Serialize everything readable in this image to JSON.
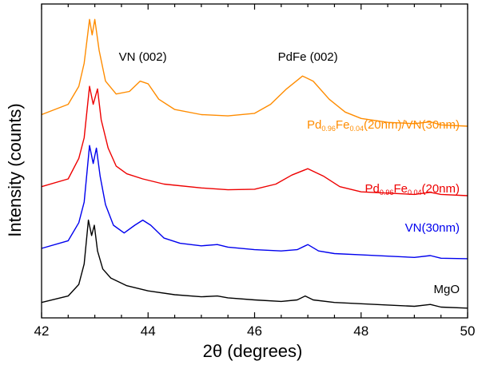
{
  "chart_data": {
    "type": "line",
    "title": "",
    "xlabel": "2θ (degrees)",
    "ylabel": "Intensity (counts)",
    "xlim": [
      42,
      50
    ],
    "xticks": [
      "42",
      "44",
      "46",
      "48",
      "50"
    ],
    "yticks_shown": false,
    "y_units": "arbitrary (offset, no y tick labels)",
    "grid": false,
    "legend": "none (inline series labels on right)",
    "annotations": [
      {
        "text": "VN (002)",
        "x": 43.9
      },
      {
        "text": "PdFe (002)",
        "x": 47.0
      }
    ],
    "series": [
      {
        "name": "MgO",
        "label_parts": [
          {
            "t": "MgO"
          }
        ],
        "color": "#000000",
        "points": [
          [
            42.0,
            0.6
          ],
          [
            42.5,
            0.85
          ],
          [
            42.7,
            1.3
          ],
          [
            42.8,
            2.1
          ],
          [
            42.88,
            3.8
          ],
          [
            42.94,
            3.2
          ],
          [
            42.99,
            3.6
          ],
          [
            43.05,
            2.6
          ],
          [
            43.15,
            1.9
          ],
          [
            43.3,
            1.55
          ],
          [
            43.6,
            1.25
          ],
          [
            44.0,
            1.05
          ],
          [
            44.5,
            0.9
          ],
          [
            45.0,
            0.82
          ],
          [
            45.3,
            0.85
          ],
          [
            45.5,
            0.78
          ],
          [
            46.0,
            0.7
          ],
          [
            46.5,
            0.64
          ],
          [
            46.8,
            0.7
          ],
          [
            46.95,
            0.85
          ],
          [
            47.1,
            0.7
          ],
          [
            47.5,
            0.6
          ],
          [
            48.0,
            0.55
          ],
          [
            48.5,
            0.5
          ],
          [
            49.0,
            0.45
          ],
          [
            49.3,
            0.52
          ],
          [
            49.5,
            0.42
          ],
          [
            50.0,
            0.38
          ]
        ]
      },
      {
        "name": "VN(30nm)",
        "label_parts": [
          {
            "t": "VN(30nm)"
          }
        ],
        "color": "#0000ee",
        "points": [
          [
            42.0,
            2.7
          ],
          [
            42.5,
            3.0
          ],
          [
            42.7,
            3.7
          ],
          [
            42.8,
            4.5
          ],
          [
            42.9,
            6.7
          ],
          [
            42.97,
            6.0
          ],
          [
            43.03,
            6.6
          ],
          [
            43.1,
            5.5
          ],
          [
            43.2,
            4.4
          ],
          [
            43.35,
            3.6
          ],
          [
            43.55,
            3.3
          ],
          [
            43.75,
            3.6
          ],
          [
            43.9,
            3.8
          ],
          [
            44.05,
            3.6
          ],
          [
            44.3,
            3.1
          ],
          [
            44.6,
            2.9
          ],
          [
            45.0,
            2.8
          ],
          [
            45.3,
            2.85
          ],
          [
            45.5,
            2.75
          ],
          [
            46.0,
            2.65
          ],
          [
            46.5,
            2.6
          ],
          [
            46.8,
            2.65
          ],
          [
            47.0,
            2.85
          ],
          [
            47.2,
            2.6
          ],
          [
            47.5,
            2.5
          ],
          [
            48.0,
            2.45
          ],
          [
            48.5,
            2.4
          ],
          [
            49.0,
            2.35
          ],
          [
            49.3,
            2.42
          ],
          [
            49.5,
            2.32
          ],
          [
            50.0,
            2.3
          ]
        ]
      },
      {
        "name": "Pd0.96Fe0.04(20nm)",
        "label_parts": [
          {
            "t": "Pd"
          },
          {
            "t": "0.96",
            "sub": true
          },
          {
            "t": "Fe"
          },
          {
            "t": "0.04",
            "sub": true
          },
          {
            "t": "(20nm)"
          }
        ],
        "color": "#ee0000",
        "points": [
          [
            42.0,
            5.1
          ],
          [
            42.5,
            5.4
          ],
          [
            42.7,
            6.2
          ],
          [
            42.8,
            7.0
          ],
          [
            42.9,
            9.0
          ],
          [
            42.97,
            8.3
          ],
          [
            43.05,
            8.9
          ],
          [
            43.12,
            7.7
          ],
          [
            43.25,
            6.6
          ],
          [
            43.4,
            5.9
          ],
          [
            43.6,
            5.6
          ],
          [
            43.9,
            5.4
          ],
          [
            44.3,
            5.2
          ],
          [
            45.0,
            5.05
          ],
          [
            45.5,
            4.98
          ],
          [
            46.0,
            5.0
          ],
          [
            46.4,
            5.2
          ],
          [
            46.7,
            5.55
          ],
          [
            47.0,
            5.8
          ],
          [
            47.3,
            5.5
          ],
          [
            47.6,
            5.1
          ],
          [
            48.0,
            4.9
          ],
          [
            48.5,
            4.85
          ],
          [
            49.0,
            4.8
          ],
          [
            49.3,
            4.88
          ],
          [
            49.5,
            4.8
          ],
          [
            50.0,
            4.75
          ]
        ]
      },
      {
        "name": "Pd0.96Fe0.04(20nm)/VN(30nm)",
        "label_parts": [
          {
            "t": "Pd"
          },
          {
            "t": "0.96",
            "sub": true
          },
          {
            "t": "Fe"
          },
          {
            "t": "0.04",
            "sub": true
          },
          {
            "t": "(20nm)/VN(30nm)"
          }
        ],
        "color": "#ff8c00",
        "points": [
          [
            42.0,
            7.9
          ],
          [
            42.5,
            8.3
          ],
          [
            42.7,
            9.0
          ],
          [
            42.8,
            9.9
          ],
          [
            42.9,
            11.6
          ],
          [
            42.95,
            11.0
          ],
          [
            43.0,
            11.6
          ],
          [
            43.08,
            10.4
          ],
          [
            43.2,
            9.2
          ],
          [
            43.4,
            8.7
          ],
          [
            43.65,
            8.8
          ],
          [
            43.85,
            9.2
          ],
          [
            44.0,
            9.1
          ],
          [
            44.2,
            8.5
          ],
          [
            44.5,
            8.1
          ],
          [
            45.0,
            7.9
          ],
          [
            45.5,
            7.85
          ],
          [
            46.0,
            7.95
          ],
          [
            46.3,
            8.3
          ],
          [
            46.6,
            8.9
          ],
          [
            46.9,
            9.4
          ],
          [
            47.1,
            9.2
          ],
          [
            47.4,
            8.5
          ],
          [
            47.7,
            8.0
          ],
          [
            48.0,
            7.75
          ],
          [
            48.5,
            7.6
          ],
          [
            49.0,
            7.55
          ],
          [
            49.3,
            7.62
          ],
          [
            49.5,
            7.5
          ],
          [
            50.0,
            7.45
          ]
        ]
      }
    ]
  }
}
